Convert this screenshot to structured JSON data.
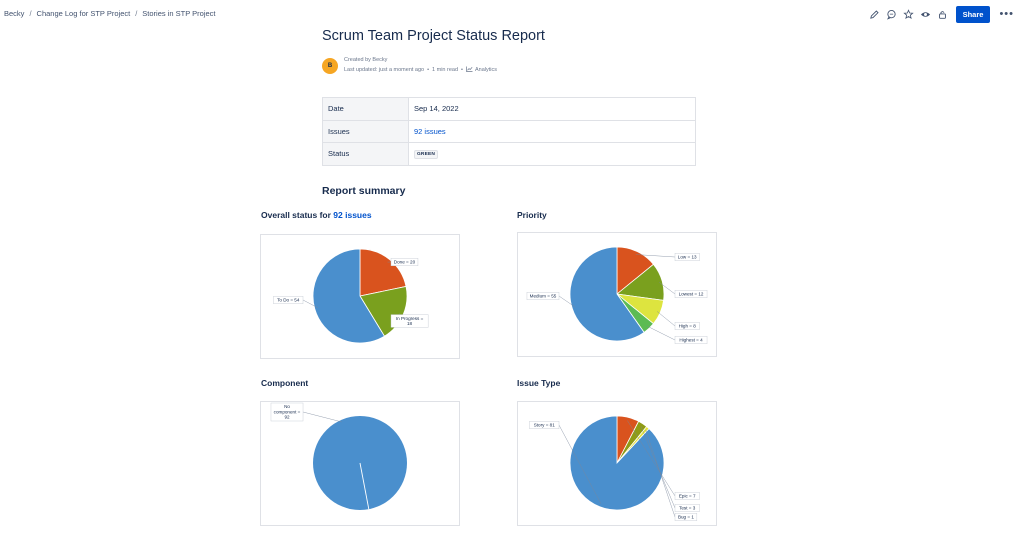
{
  "breadcrumbs": [
    "Becky",
    "Change Log for STP Project",
    "Stories in STP Project"
  ],
  "header": {
    "share_label": "Share",
    "more_label": "•••"
  },
  "page": {
    "title": "Scrum Team Project Status Report",
    "avatar_initial": "B",
    "created_by": "Created by Becky",
    "last_updated": "Last updated: just a moment ago",
    "read_time": "1 min read",
    "analytics": "Analytics"
  },
  "details": {
    "rows": [
      {
        "label": "Date",
        "value": "Sep 14, 2022"
      },
      {
        "label": "Issues",
        "value": "92 issues"
      },
      {
        "label": "Status",
        "value": "GREEN"
      }
    ]
  },
  "summary_heading": "Report summary",
  "charts_meta": {
    "status_title_prefix": "Overall status for",
    "status_title_link": "92 issues",
    "priority_title": "Priority",
    "component_title": "Component",
    "issue_type_title": "Issue Type"
  },
  "colors": {
    "blue": "#4a8fcd",
    "orange": "#d9531e",
    "green": "#7aa01e",
    "lime": "#dde43f",
    "lightgreen": "#5cbb53",
    "olive": "#8f9b16",
    "yellow": "#e4e33c"
  },
  "chart_data": [
    {
      "type": "pie",
      "id": "status",
      "slices": [
        {
          "name": "Done",
          "value": 20,
          "color": "#d9531e",
          "label": "Done = 20"
        },
        {
          "name": "In Progress",
          "value": 18,
          "color": "#7aa01e",
          "label": "In Progress = 18"
        },
        {
          "name": "To Do",
          "value": 54,
          "color": "#4a8fcd",
          "label": "To Do = 54"
        }
      ]
    },
    {
      "type": "pie",
      "id": "priority",
      "slices": [
        {
          "name": "Low",
          "value": 13,
          "color": "#d9531e",
          "label": "Low = 13"
        },
        {
          "name": "Lowest",
          "value": 12,
          "color": "#7aa01e",
          "label": "Lowest = 12"
        },
        {
          "name": "High",
          "value": 8,
          "color": "#dde43f",
          "label": "High = 8"
        },
        {
          "name": "Highest",
          "value": 4,
          "color": "#5cbb53",
          "label": "Highest = 4"
        },
        {
          "name": "Medium",
          "value": 55,
          "color": "#4a8fcd",
          "label": "Medium = 55"
        }
      ]
    },
    {
      "type": "pie",
      "id": "component",
      "slices": [
        {
          "name": "No component",
          "value": 92,
          "color": "#4a8fcd",
          "label": "No component = 92"
        }
      ]
    },
    {
      "type": "pie",
      "id": "issuetype",
      "slices": [
        {
          "name": "Epic",
          "value": 7,
          "color": "#d9531e",
          "label": "Epic = 7"
        },
        {
          "name": "Test",
          "value": 3,
          "color": "#8f9b16",
          "label": "Test = 3"
        },
        {
          "name": "Bug",
          "value": 1,
          "color": "#e4e33c",
          "label": "Bug = 1"
        },
        {
          "name": "Story",
          "value": 81,
          "color": "#4a8fcd",
          "label": "Story = 81"
        }
      ]
    }
  ]
}
